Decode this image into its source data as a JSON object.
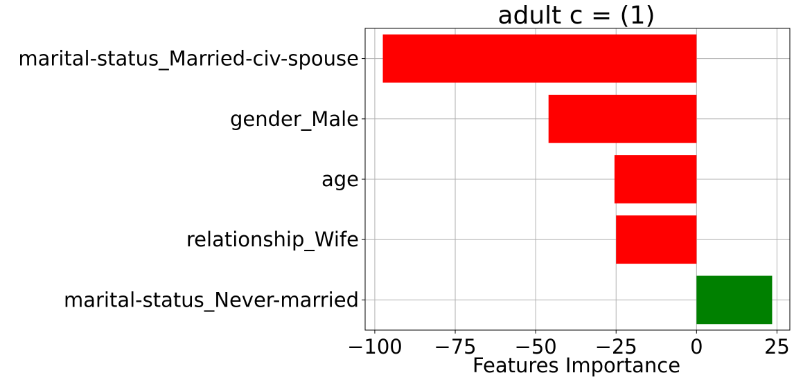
{
  "chart_data": {
    "type": "bar",
    "orientation": "horizontal",
    "title": "adult c = (1)",
    "xlabel": "Features Importance",
    "ylabel": "",
    "categories": [
      "marital-status_Married-civ-spouse",
      "gender_Male",
      "age",
      "relationship_Wife",
      "marital-status_Never-married"
    ],
    "values": [
      -97.5,
      -46,
      -25.5,
      -25,
      23.5
    ],
    "bar_colors": [
      "#ff0000",
      "#ff0000",
      "#ff0000",
      "#ff0000",
      "#008000"
    ],
    "xlim": [
      -103,
      29
    ],
    "xticks": [
      -100,
      -75,
      -50,
      -25,
      0,
      25
    ],
    "xtick_labels": [
      "−100",
      "−75",
      "−50",
      "−25",
      "0",
      "25"
    ],
    "grid": true,
    "legend": "none"
  }
}
